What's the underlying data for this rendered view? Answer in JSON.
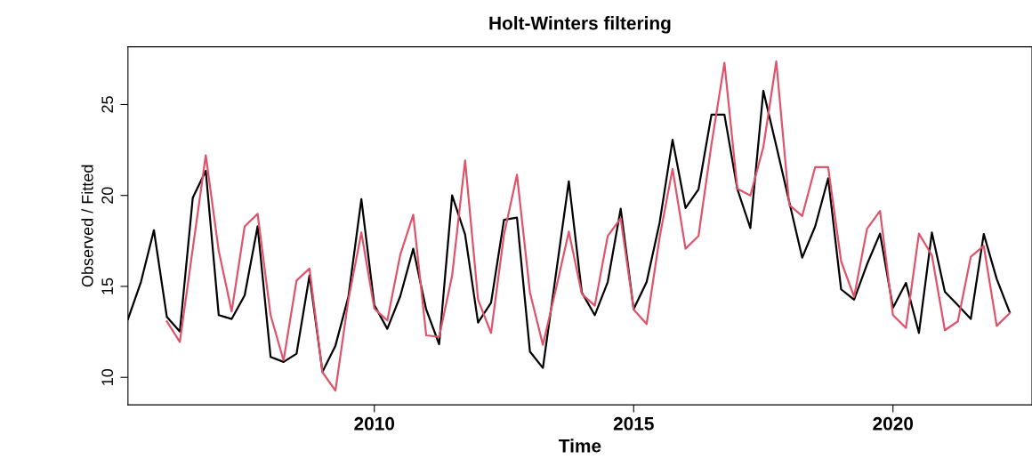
{
  "chart_data": {
    "type": "line",
    "title": "Holt-Winters filtering",
    "xlabel": "Time",
    "ylabel": "Observed / Fitted",
    "xlim": [
      2005.25,
      2022.68
    ],
    "ylim": [
      8.49,
      28.17
    ],
    "xticks": [
      2010,
      2015,
      2020
    ],
    "yticks": [
      10,
      15,
      20,
      25
    ],
    "grid": false,
    "marker": "none",
    "line_style": "solid",
    "series": [
      {
        "color": "#000000",
        "x": [
          2005.25,
          2005.5,
          2005.75,
          2006.0,
          2006.25,
          2006.5,
          2006.75,
          2007.0,
          2007.25,
          2007.5,
          2007.75,
          2008.0,
          2008.25,
          2008.5,
          2008.75,
          2009.0,
          2009.25,
          2009.5,
          2009.75,
          2010.0,
          2010.25,
          2010.5,
          2010.75,
          2011.0,
          2011.25,
          2011.5,
          2011.75,
          2012.0,
          2012.25,
          2012.5,
          2012.75,
          2013.0,
          2013.25,
          2013.5,
          2013.75,
          2014.0,
          2014.25,
          2014.5,
          2014.75,
          2015.0,
          2015.25,
          2015.5,
          2015.75,
          2016.0,
          2016.25,
          2016.5,
          2016.75,
          2017.0,
          2017.25,
          2017.5,
          2017.75,
          2018.0,
          2018.25,
          2018.5,
          2018.75,
          2019.0,
          2019.25,
          2019.5,
          2019.75,
          2020.0,
          2020.25,
          2020.5,
          2020.75,
          2021.0,
          2021.25,
          2021.5,
          2021.75,
          2022.0,
          2022.25
        ],
        "values": [
          13.2,
          15.24,
          18.09,
          13.32,
          12.52,
          19.88,
          21.35,
          13.42,
          13.21,
          14.51,
          18.3,
          11.12,
          10.85,
          11.3,
          15.6,
          10.31,
          11.74,
          14.43,
          19.8,
          13.97,
          12.67,
          14.46,
          17.07,
          13.73,
          11.82,
          20.0,
          17.85,
          13.01,
          14.1,
          18.66,
          18.78,
          11.42,
          10.52,
          15.65,
          20.78,
          14.67,
          13.42,
          15.24,
          19.27,
          13.75,
          15.24,
          18.5,
          23.06,
          19.31,
          20.34,
          24.44,
          24.44,
          20.34,
          18.21,
          25.75,
          22.73,
          19.64,
          16.58,
          18.3,
          20.94,
          14.84,
          14.27,
          16.22,
          17.9,
          13.83,
          15.19,
          12.44,
          17.96,
          14.71,
          13.97,
          13.21,
          17.88,
          15.41,
          13.58
        ]
      },
      {
        "color": "#df536b",
        "x": [
          2006.0,
          2006.25,
          2006.5,
          2006.75,
          2007.0,
          2007.25,
          2007.5,
          2007.75,
          2008.0,
          2008.25,
          2008.5,
          2008.75,
          2009.0,
          2009.25,
          2009.5,
          2009.75,
          2010.0,
          2010.25,
          2010.5,
          2010.75,
          2011.0,
          2011.25,
          2011.5,
          2011.75,
          2012.0,
          2012.25,
          2012.5,
          2012.75,
          2013.0,
          2013.25,
          2013.5,
          2013.75,
          2014.0,
          2014.25,
          2014.5,
          2014.75,
          2015.0,
          2015.25,
          2015.5,
          2015.75,
          2016.0,
          2016.25,
          2016.5,
          2016.75,
          2017.0,
          2017.25,
          2017.5,
          2017.75,
          2018.0,
          2018.25,
          2018.5,
          2018.75,
          2019.0,
          2019.25,
          2019.5,
          2019.75,
          2020.0,
          2020.25,
          2020.5,
          2020.75,
          2021.0,
          2021.25,
          2021.5,
          2021.75,
          2022.0,
          2022.25
        ],
        "values": [
          13.08,
          11.95,
          17.08,
          22.21,
          16.95,
          13.62,
          18.3,
          18.99,
          13.42,
          10.93,
          15.32,
          15.98,
          10.28,
          9.27,
          14.27,
          17.96,
          13.78,
          13.13,
          16.74,
          18.94,
          12.31,
          12.23,
          15.6,
          21.92,
          14.27,
          12.44,
          17.85,
          21.14,
          14.67,
          11.79,
          14.84,
          18.01,
          14.59,
          13.94,
          17.77,
          18.74,
          13.73,
          12.93,
          17.69,
          21.46,
          17.07,
          17.77,
          22.8,
          27.29,
          20.37,
          20.0,
          22.65,
          27.37,
          19.48,
          18.87,
          21.56,
          21.56,
          16.38,
          14.43,
          18.17,
          19.15,
          13.42,
          12.72,
          17.9,
          16.71,
          12.59,
          13.08,
          16.63,
          17.23,
          12.83,
          13.53
        ]
      }
    ]
  }
}
